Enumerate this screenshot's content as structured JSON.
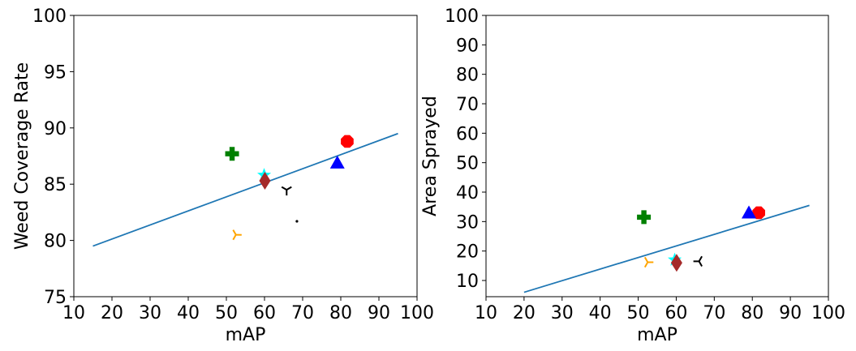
{
  "chart_data": [
    {
      "type": "scatter",
      "title": "",
      "xlabel": "mAP",
      "ylabel": "Weed Coverage Rate",
      "xlim": [
        10,
        100
      ],
      "ylim": [
        75,
        100
      ],
      "xticks": [
        10,
        20,
        30,
        40,
        50,
        60,
        70,
        80,
        90,
        100
      ],
      "yticks": [
        75,
        80,
        85,
        90,
        95,
        100
      ],
      "grid": false,
      "series": [
        {
          "marker": "octagon",
          "color": "#ff0000",
          "x": 81.7,
          "y": 88.8
        },
        {
          "marker": "triangle",
          "color": "#0000ff",
          "x": 79.1,
          "y": 86.9
        },
        {
          "marker": "plus",
          "color": "#008000",
          "x": 51.5,
          "y": 87.7
        },
        {
          "marker": "star",
          "color": "#00ffff",
          "x": 59.9,
          "y": 85.8
        },
        {
          "marker": "diamond",
          "color": "#a52a2a",
          "x": 60.1,
          "y": 85.3
        },
        {
          "marker": "tri-down",
          "color": "#000000",
          "x": 65.8,
          "y": 84.5
        },
        {
          "marker": "tri-right",
          "color": "#ffa500",
          "x": 52.5,
          "y": 80.5
        },
        {
          "marker": "point",
          "color": "#000000",
          "x": 68.5,
          "y": 81.7
        }
      ],
      "trendline": {
        "color": "#1f77b4",
        "x": [
          15,
          95
        ],
        "y": [
          79.5,
          89.5
        ]
      }
    },
    {
      "type": "scatter",
      "title": "",
      "xlabel": "mAP",
      "ylabel": "Area Sprayed",
      "xlim": [
        10,
        100
      ],
      "ylim": [
        4.5,
        100
      ],
      "xticks": [
        10,
        20,
        30,
        40,
        50,
        60,
        70,
        80,
        90,
        100
      ],
      "yticks": [
        10,
        20,
        30,
        40,
        50,
        60,
        70,
        80,
        90,
        100
      ],
      "grid": false,
      "series": [
        {
          "marker": "octagon",
          "color": "#ff0000",
          "x": 81.7,
          "y": 33.0
        },
        {
          "marker": "triangle",
          "color": "#0000ff",
          "x": 79.1,
          "y": 33.0
        },
        {
          "marker": "plus",
          "color": "#008000",
          "x": 51.5,
          "y": 31.5
        },
        {
          "marker": "star",
          "color": "#00ffff",
          "x": 59.6,
          "y": 17.0
        },
        {
          "marker": "diamond",
          "color": "#a52a2a",
          "x": 60.1,
          "y": 16.0
        },
        {
          "marker": "tri-right",
          "color": "#ffa500",
          "x": 52.5,
          "y": 16.2
        },
        {
          "marker": "tri-left",
          "color": "#000000",
          "x": 66.0,
          "y": 16.5
        }
      ],
      "trendline": {
        "color": "#1f77b4",
        "x": [
          20,
          95
        ],
        "y": [
          6.0,
          35.5
        ]
      }
    }
  ]
}
